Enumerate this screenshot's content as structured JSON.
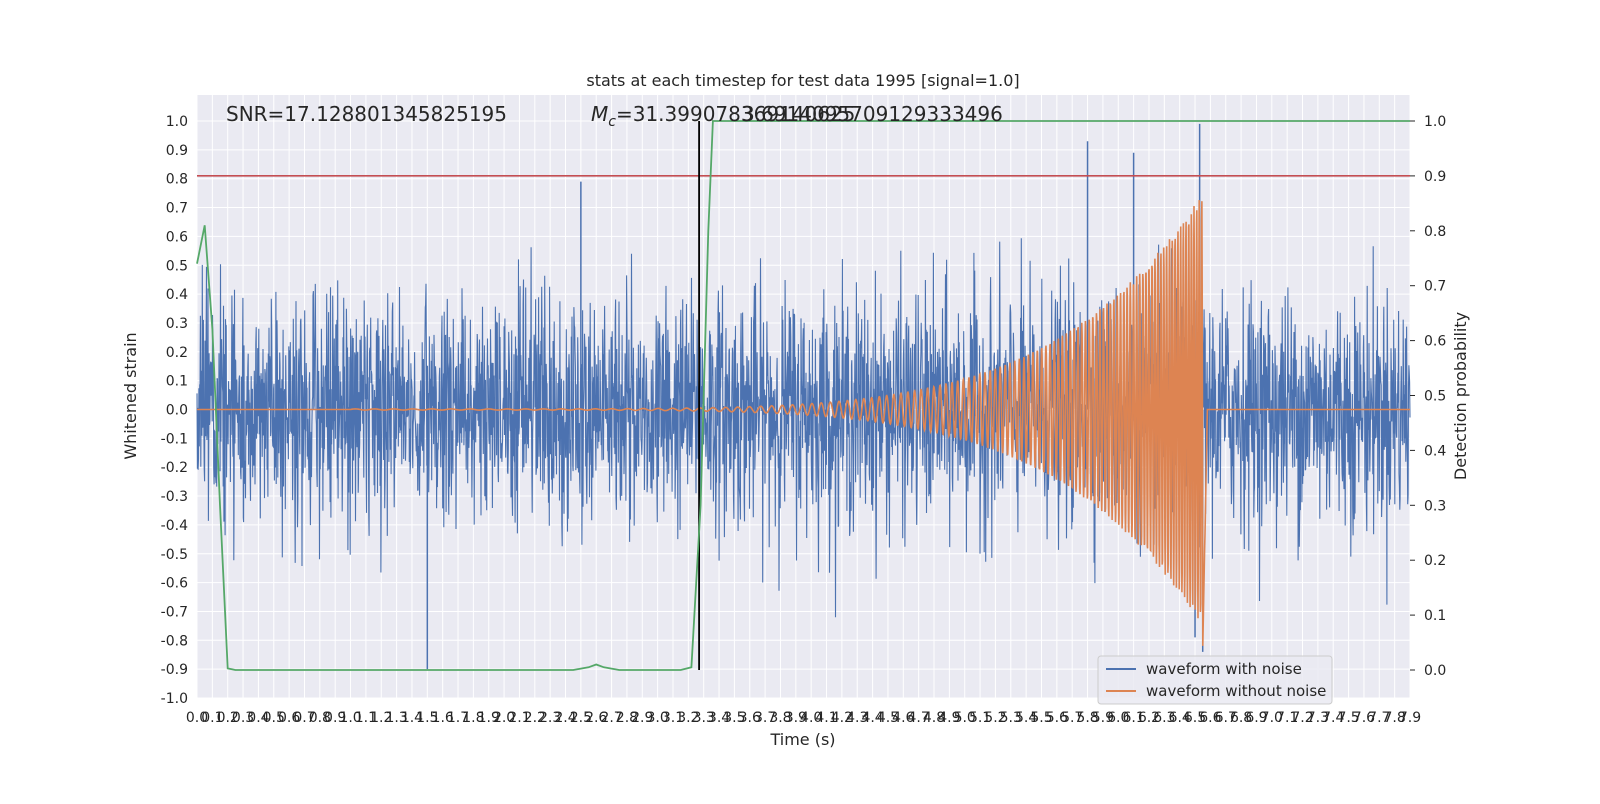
{
  "chart_data": {
    "type": "line",
    "title": "stats at each timestep for test data 1995 [signal=1.0]",
    "xlabel": "Time (s)",
    "ylabel": "Whitened strain",
    "y2label": "Detection probability",
    "xlim": [
      0.0,
      7.9
    ],
    "ylim": [
      -1.0,
      1.0
    ],
    "y2lim": [
      -0.05,
      1.0
    ],
    "x_ticks": [
      "0.0",
      "0.1",
      "0.2",
      "0.3",
      "0.4",
      "0.5",
      "0.6",
      "0.7",
      "0.8",
      "0.9",
      "1.0",
      "1.1",
      "1.2",
      "1.3",
      "1.4",
      "1.5",
      "1.6",
      "1.7",
      "1.8",
      "1.9",
      "2.0",
      "2.1",
      "2.2",
      "2.3",
      "2.4",
      "2.5",
      "2.6",
      "2.7",
      "2.8",
      "2.9",
      "3.0",
      "3.1",
      "3.2",
      "3.3",
      "3.4",
      "3.5",
      "3.6",
      "3.7",
      "3.8",
      "3.9",
      "4.0",
      "4.1",
      "4.2",
      "4.3",
      "4.4",
      "4.5",
      "4.6",
      "4.7",
      "4.8",
      "4.9",
      "5.0",
      "5.1",
      "5.2",
      "5.3",
      "5.4",
      "5.5",
      "5.6",
      "5.7",
      "5.8",
      "5.9",
      "6.0",
      "6.1",
      "6.2",
      "6.3",
      "6.4",
      "6.5",
      "6.6",
      "6.7",
      "6.8",
      "6.9",
      "7.0",
      "7.1",
      "7.2",
      "7.3",
      "7.4",
      "7.5",
      "7.6",
      "7.7",
      "7.8",
      "7.9"
    ],
    "y_ticks": [
      "-1.0",
      "-0.9",
      "-0.8",
      "-0.7",
      "-0.6",
      "-0.5",
      "-0.4",
      "-0.3",
      "-0.2",
      "-0.1",
      "0.0",
      "0.1",
      "0.2",
      "0.3",
      "0.4",
      "0.5",
      "0.6",
      "0.7",
      "0.8",
      "0.9",
      "1.0"
    ],
    "y2_ticks": [
      "0.0",
      "0.1",
      "0.2",
      "0.3",
      "0.4",
      "0.5",
      "0.6",
      "0.7",
      "0.8",
      "0.9",
      "1.0"
    ],
    "annotations": {
      "snr": "SNR=17.128801345825195",
      "mc_prefix": "M",
      "mc_sub": "c",
      "mc_value": "=31.399078369140625",
      "overlap_text": "3.6914095709129333496"
    },
    "threshold_y": 0.81,
    "marker_time": 3.27,
    "merger_time": 6.55,
    "series": [
      {
        "name": "waveform with noise",
        "color": "#4c72b0",
        "std": 0.2,
        "extremes": [
          [
            1.5,
            -0.9
          ],
          [
            5.8,
            0.93
          ],
          [
            6.1,
            0.89
          ],
          [
            6.53,
            0.99
          ],
          [
            6.5,
            -0.79
          ],
          [
            2.5,
            0.79
          ],
          [
            6.55,
            -0.84
          ]
        ]
      },
      {
        "name": "waveform without noise",
        "color": "#dd8452",
        "amp_start": 0.002,
        "amp_peak": 0.75,
        "f_start": 8,
        "f_end": 60
      }
    ],
    "probability": {
      "color": "#55a868",
      "points": [
        [
          0.0,
          0.74
        ],
        [
          0.05,
          0.81
        ],
        [
          0.1,
          0.62
        ],
        [
          0.15,
          0.3
        ],
        [
          0.2,
          0.003
        ],
        [
          0.25,
          0.0
        ],
        [
          0.5,
          0.0
        ],
        [
          1.0,
          0.0
        ],
        [
          1.5,
          0.0
        ],
        [
          2.0,
          0.0
        ],
        [
          2.45,
          0.0
        ],
        [
          2.55,
          0.005
        ],
        [
          2.6,
          0.01
        ],
        [
          2.65,
          0.005
        ],
        [
          2.75,
          0.0
        ],
        [
          3.0,
          0.0
        ],
        [
          3.15,
          0.0
        ],
        [
          3.22,
          0.005
        ],
        [
          3.28,
          0.3
        ],
        [
          3.33,
          0.8
        ],
        [
          3.36,
          1.0
        ],
        [
          7.9,
          1.0
        ]
      ]
    },
    "threshold_color": "#c44e52",
    "marker_color": "#000000",
    "grid": true,
    "legend_placement": "lower-right"
  }
}
